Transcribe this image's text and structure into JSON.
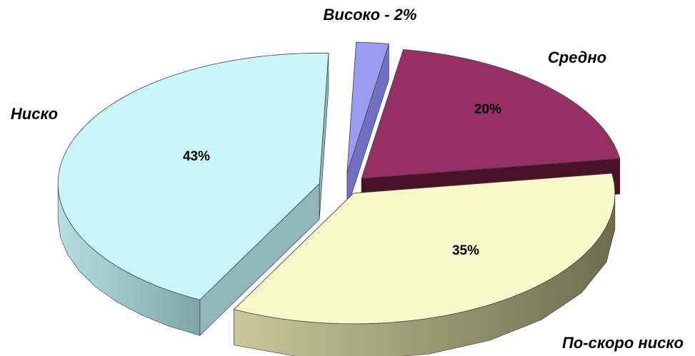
{
  "chart_data": {
    "type": "pie",
    "three_d": true,
    "exploded": true,
    "categories": [
      "Ниско",
      "Високо",
      "Средно",
      "По-скоро ниско"
    ],
    "values": [
      43,
      2,
      20,
      35
    ],
    "value_labels": [
      "43%",
      "",
      "20%",
      "35%"
    ],
    "category_labels": [
      "Ниско",
      "Високо - 2%",
      "Средно",
      "По-скоро ниско"
    ],
    "colors": [
      "#c9f7f9",
      "#9a9cf2",
      "#962f63",
      "#f9f8c9"
    ],
    "side_colors": [
      "#8fb7ba",
      "#6f70c4",
      "#4a1228",
      "#a3a27a"
    ],
    "legend": "none",
    "title": ""
  }
}
